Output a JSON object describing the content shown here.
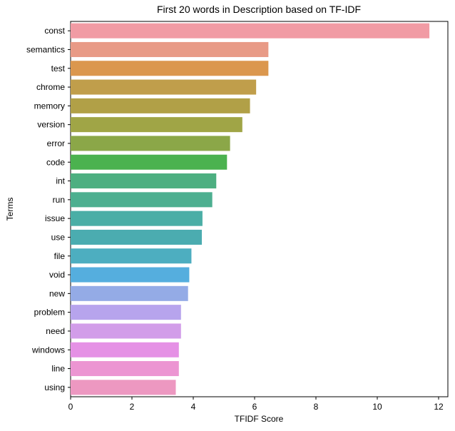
{
  "chart_data": {
    "type": "bar",
    "orientation": "horizontal",
    "title": "First 20 words in Description based on TF-IDF",
    "xlabel": "TFIDF Score",
    "ylabel": "Terms",
    "xlim": [
      0,
      12.3
    ],
    "xticks": [
      0,
      2,
      4,
      6,
      8,
      10,
      12
    ],
    "grid": false,
    "categories": [
      "const",
      "semantics",
      "test",
      "chrome",
      "memory",
      "version",
      "error",
      "code",
      "int",
      "run",
      "issue",
      "use",
      "file",
      "void",
      "new",
      "problem",
      "need",
      "windows",
      "line",
      "using"
    ],
    "values": [
      11.7,
      6.45,
      6.45,
      6.05,
      5.85,
      5.6,
      5.2,
      5.1,
      4.75,
      4.62,
      4.3,
      4.28,
      3.94,
      3.87,
      3.83,
      3.6,
      3.6,
      3.53,
      3.53,
      3.43
    ],
    "colors": [
      "#f19ba4",
      "#e89a86",
      "#db974e",
      "#c09e4b",
      "#b1a047",
      "#a0a546",
      "#8ba748",
      "#4bb24f",
      "#4daf81",
      "#4daf90",
      "#4aaea6",
      "#4bacb0",
      "#4daec0",
      "#55aede",
      "#94abe6",
      "#b7a4ed",
      "#d29de9",
      "#e591e5",
      "#ec95d2",
      "#ed98c1"
    ]
  }
}
